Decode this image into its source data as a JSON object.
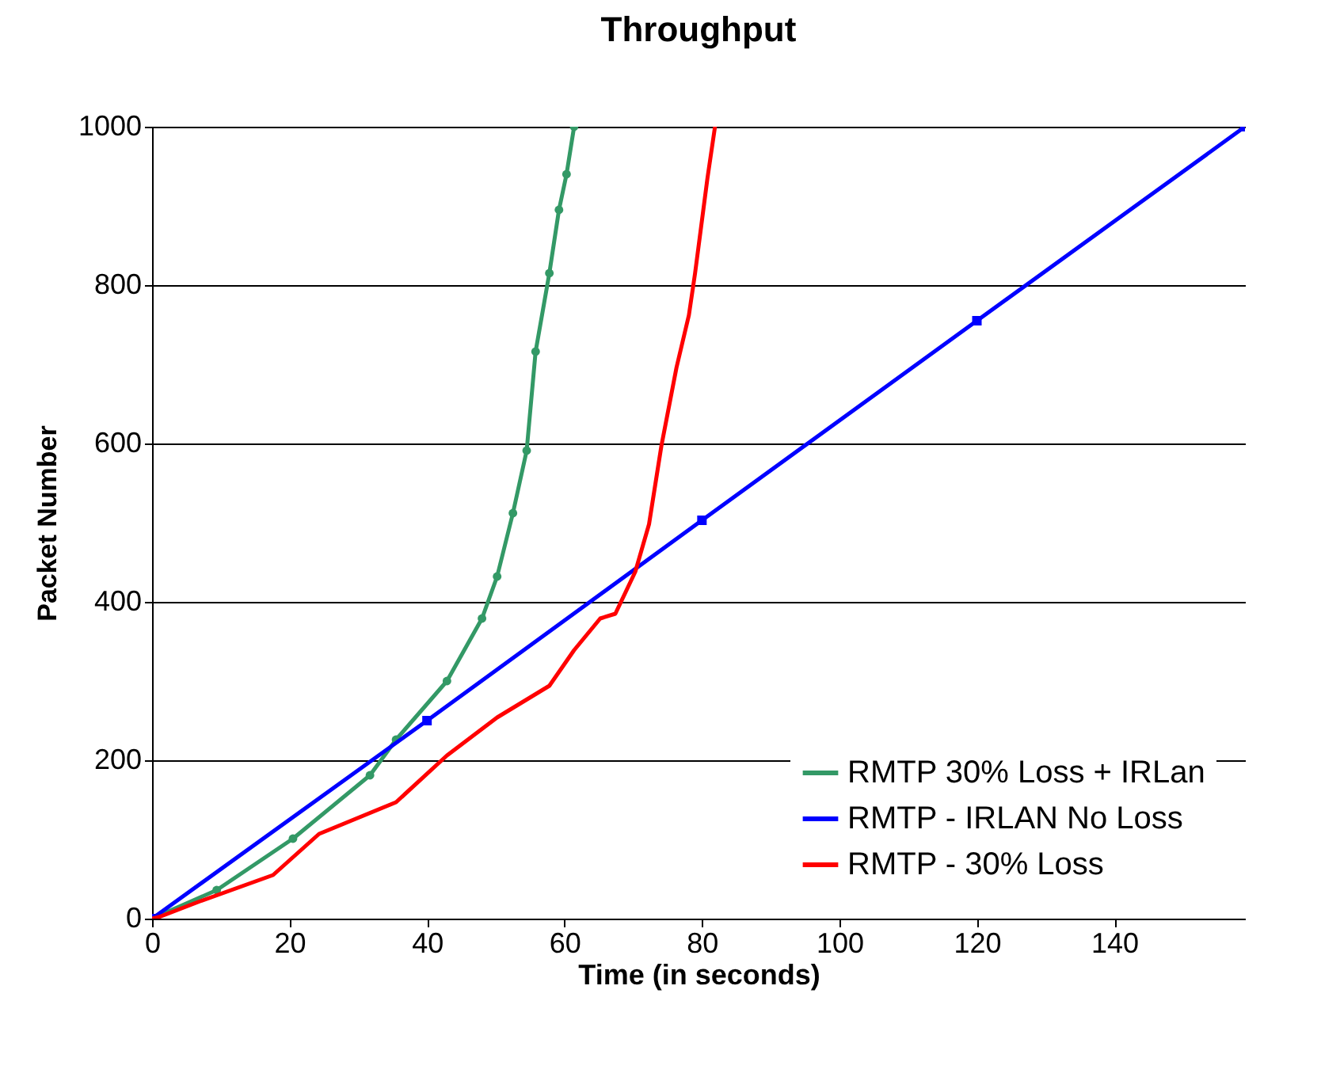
{
  "chart_data": {
    "type": "line",
    "title": "Throughput",
    "xlabel": "Time (in seconds)",
    "ylabel": "Packet Number",
    "xlim": [
      0,
      159
    ],
    "xticks": [
      0,
      20,
      40,
      60,
      80,
      100,
      120,
      140
    ],
    "ylim": [
      0,
      1000
    ],
    "yticks": [
      0,
      200,
      400,
      600,
      800,
      1000
    ],
    "grid": "y",
    "legend": "bottom right",
    "series": [
      {
        "name": "RMTP 30% Loss + IRLan",
        "color": "#339966",
        "marker": "circle",
        "x": [
          0,
          9.4,
          20.5,
          31.7,
          35.5,
          42.9,
          48,
          50.2,
          52.5,
          54.5,
          55.8,
          57.8,
          59.2,
          60.3,
          61.4
        ],
        "values": [
          0,
          36,
          101,
          181,
          226,
          300,
          379,
          432,
          512,
          591,
          716,
          815,
          895,
          940,
          1000
        ]
      },
      {
        "name": "RMTP - IRLAN No Loss",
        "color": "#0000ff",
        "marker": "square",
        "x": [
          0,
          40,
          80,
          120,
          159
        ],
        "values": [
          0,
          250,
          503,
          755,
          1000
        ]
      },
      {
        "name": "RMTP - 30% Loss",
        "color": "#ff0000",
        "marker": "none",
        "x": [
          0,
          1,
          7,
          17.6,
          24.3,
          35.5,
          42.9,
          50.2,
          57.8,
          61.4,
          65.2,
          67.4,
          70.3,
          72.3,
          74.1,
          76.3,
          78.1,
          79,
          80.8,
          81.9
        ],
        "values": [
          0,
          2,
          22,
          55,
          107,
          147,
          206,
          254,
          294,
          339,
          379,
          385,
          438,
          498,
          597,
          696,
          762,
          815,
          935,
          1000
        ]
      }
    ]
  }
}
